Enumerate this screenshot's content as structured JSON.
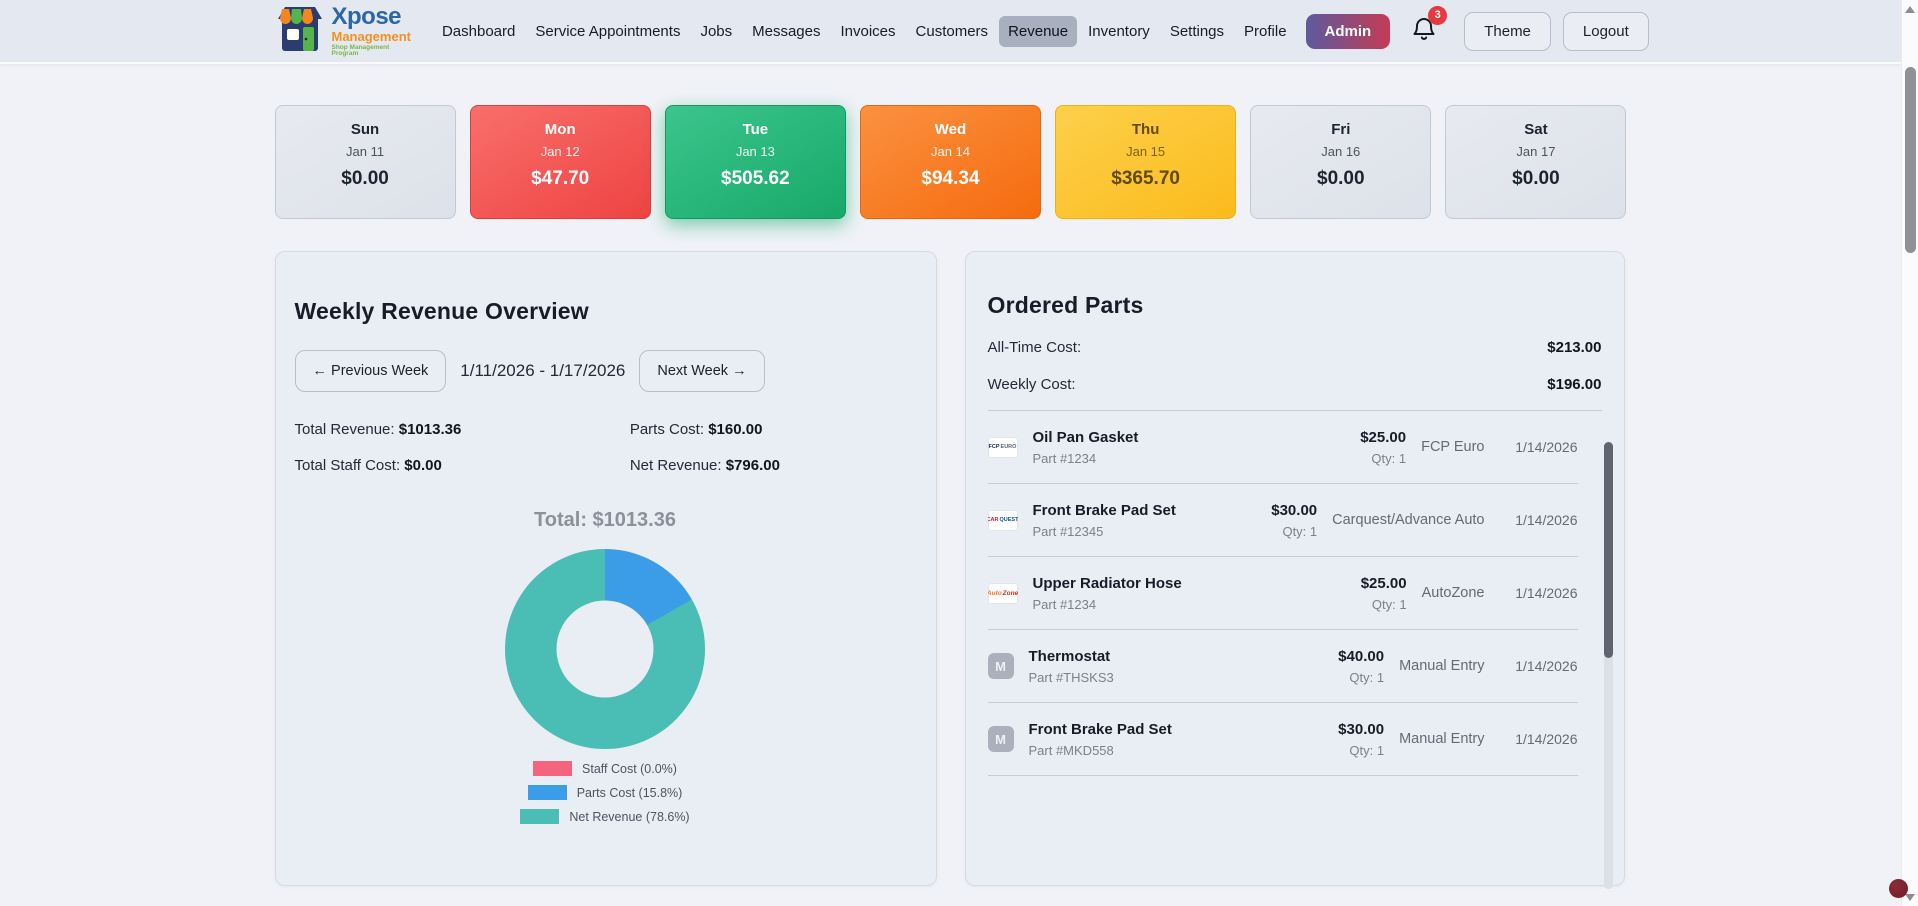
{
  "brand": {
    "name_primary": "Xpose",
    "name_secondary": "Management",
    "tagline": "Shop Management Program"
  },
  "nav": {
    "items": [
      "Dashboard",
      "Service Appointments",
      "Jobs",
      "Messages",
      "Invoices",
      "Customers",
      "Revenue",
      "Inventory",
      "Settings",
      "Profile"
    ],
    "active": "Revenue",
    "admin_label": "Admin",
    "notification_count": "3",
    "theme_label": "Theme",
    "logout_label": "Logout"
  },
  "week_days": [
    {
      "day": "Sun",
      "date": "Jan 11",
      "amount": "$0.00",
      "variant": "none"
    },
    {
      "day": "Mon",
      "date": "Jan 12",
      "amount": "$47.70",
      "variant": "red"
    },
    {
      "day": "Tue",
      "date": "Jan 13",
      "amount": "$505.62",
      "variant": "green"
    },
    {
      "day": "Wed",
      "date": "Jan 14",
      "amount": "$94.34",
      "variant": "orange"
    },
    {
      "day": "Thu",
      "date": "Jan 15",
      "amount": "$365.70",
      "variant": "yellow"
    },
    {
      "day": "Fri",
      "date": "Jan 16",
      "amount": "$0.00",
      "variant": "none"
    },
    {
      "day": "Sat",
      "date": "Jan 17",
      "amount": "$0.00",
      "variant": "none"
    }
  ],
  "revenue_panel": {
    "title": "Weekly Revenue Overview",
    "prev_label": "← Previous Week",
    "date_range": "1/11/2026 - 1/17/2026",
    "next_label": "Next Week →",
    "stats": [
      {
        "label": "Total Revenue: ",
        "value": "$1013.36"
      },
      {
        "label": "Parts Cost: ",
        "value": "$160.00"
      },
      {
        "label": "Total Staff Cost: ",
        "value": "$0.00"
      },
      {
        "label": "Net Revenue: ",
        "value": "$796.00"
      }
    ],
    "chart_total": "Total: $1013.36"
  },
  "chart_data": {
    "type": "pie",
    "subtype": "donut",
    "title": "Total: $1013.36",
    "total_value": 1013.36,
    "labels": [
      "Staff Cost (0.0%)",
      "Parts Cost (15.8%)",
      "Net Revenue (78.6%)"
    ],
    "values": [
      0,
      160,
      796
    ],
    "percentages": [
      0.0,
      15.8,
      78.6
    ],
    "colors": [
      "#f4647e",
      "#3b9ce8",
      "#4abdb4"
    ],
    "legend_position": "bottom"
  },
  "ordered_parts": {
    "title": "Ordered Parts",
    "alltime_label": "All-Time Cost:",
    "alltime_value": "$213.00",
    "weekly_label": "Weekly Cost:",
    "weekly_value": "$196.00",
    "items": [
      {
        "name": "Oil Pan Gasket",
        "part": "Part #1234",
        "price": "$25.00",
        "qty": "Qty: 1",
        "vendor": "FCP Euro",
        "date": "1/14/2026",
        "logo": "fcp",
        "logo_parts": [
          {
            "text": "FCP",
            "color": "#12264d"
          },
          {
            "text": "EURO",
            "color": "#5b6470"
          }
        ]
      },
      {
        "name": "Front Brake Pad Set",
        "part": "Part #12345",
        "price": "$30.00",
        "qty": "Qty: 1",
        "vendor": "Carquest/Advance Auto",
        "date": "1/14/2026",
        "logo": "carquest",
        "logo_parts": [
          {
            "text": "CAR",
            "color": "#d7182a"
          },
          {
            "text": "QUEST",
            "color": "#0f4f9e"
          }
        ]
      },
      {
        "name": "Upper Radiator Hose",
        "part": "Part #1234",
        "price": "$25.00",
        "qty": "Qty: 1",
        "vendor": "AutoZone",
        "date": "1/14/2026",
        "logo": "autozone",
        "logo_parts": [
          {
            "text": "Auto",
            "color": "#f47b20"
          },
          {
            "text": "Zone",
            "color": "#d52b1e"
          }
        ]
      },
      {
        "name": "Thermostat",
        "part": "Part #THSKS3",
        "price": "$40.00",
        "qty": "Qty: 1",
        "vendor": "Manual Entry",
        "date": "1/14/2026",
        "logo": "manual",
        "logo_letter": "M"
      },
      {
        "name": "Front Brake Pad Set",
        "part": "Part #MKD558",
        "price": "$30.00",
        "qty": "Qty: 1",
        "vendor": "Manual Entry",
        "date": "1/14/2026",
        "logo": "manual",
        "logo_letter": "M"
      }
    ]
  },
  "colors": {
    "navbar_bg": "#e4e8f1",
    "page_bg": "#f0f2f7",
    "panel_bg": "#e9edf4",
    "active_nav_pill": "#a8afbf",
    "admin_gradient": [
      "#5c5a9e",
      "#c43b55"
    ],
    "badge_red": "#e5393f",
    "day_red": "#ee4343",
    "day_green": "#17a969",
    "day_orange": "#f56b0e",
    "day_yellow": "#fbbb1c"
  }
}
